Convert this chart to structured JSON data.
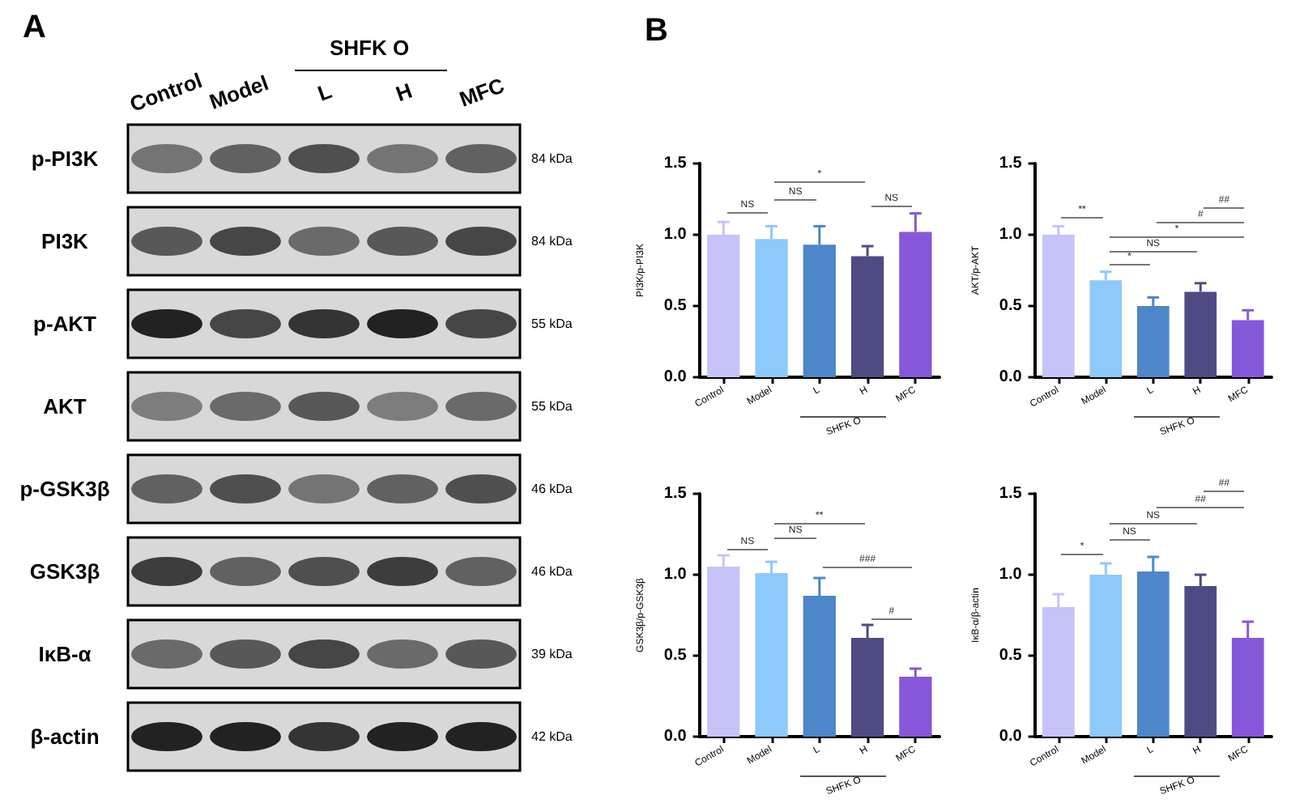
{
  "chart_data": [
    {
      "type": "other",
      "title": "A",
      "annotations": [
        "Control",
        "Model",
        "L",
        "H",
        "MFC",
        "SHFK O",
        "p-PI3K",
        "PI3K",
        "p-AKT",
        "AKT",
        "p-GSK3β",
        "GSK3β",
        "IκB-α",
        "β-actin",
        "84 kDa",
        "84 kDa",
        "55 kDa",
        "55 kDa",
        "46 kDa",
        "46 kDa",
        "39 kDa",
        "42 kDa"
      ]
    },
    {
      "type": "bar",
      "title": "B",
      "ylabel": "PI3K/p-PI3K",
      "categories": [
        "Control",
        "Model",
        "L",
        "H",
        "MFC"
      ],
      "values": [
        1.0,
        0.97,
        0.93,
        0.85,
        1.02
      ],
      "errors": [
        [
          1.0,
          1.09
        ],
        [
          0.97,
          1.06
        ],
        [
          0.93,
          1.06
        ],
        [
          0.85,
          0.92
        ],
        [
          1.02,
          1.15
        ]
      ],
      "colors": [
        "#c5c3fa",
        "#8ec9fb",
        "#4d87c9",
        "#4e4b84",
        "#8757da"
      ],
      "ylim": [
        0,
        1.5
      ],
      "yticks": [
        {
          "value": 0,
          "label": "0.0"
        },
        {
          "value": 0.5,
          "label": "0.5"
        },
        {
          "value": 1,
          "label": "1.0"
        },
        {
          "value": 1.5,
          "label": "1.5"
        }
      ],
      "annotations": [
        "NS",
        "NS",
        "*",
        "NS",
        "SHFK O"
      ]
    },
    {
      "type": "bar",
      "ylabel": "AKT/p-AKT",
      "categories": [
        "Control",
        "Model",
        "L",
        "H",
        "MFC"
      ],
      "values": [
        1.0,
        0.68,
        0.5,
        0.6,
        0.4
      ],
      "errors": [
        [
          1.0,
          1.06
        ],
        [
          0.68,
          0.74
        ],
        [
          0.5,
          0.56
        ],
        [
          0.6,
          0.66
        ],
        [
          0.4,
          0.47
        ]
      ],
      "colors": [
        "#c5c3fa",
        "#8ec9fb",
        "#4d87c9",
        "#4e4b84",
        "#8757da"
      ],
      "ylim": [
        0,
        1.5
      ],
      "yticks": [
        {
          "value": 0,
          "label": "0.0"
        },
        {
          "value": 0.5,
          "label": "0.5"
        },
        {
          "value": 1,
          "label": "1.0"
        },
        {
          "value": 1.5,
          "label": "1.5"
        }
      ],
      "annotations": [
        "**",
        "*",
        "NS",
        "*",
        "#",
        "##",
        "SHFK O"
      ]
    },
    {
      "type": "bar",
      "ylabel": "GSK3β/p-GSK3β",
      "categories": [
        "Control",
        "Model",
        "L",
        "H",
        "MFC"
      ],
      "values": [
        1.05,
        1.01,
        0.87,
        0.61,
        0.37
      ],
      "errors": [
        [
          1.05,
          1.12
        ],
        [
          1.01,
          1.08
        ],
        [
          0.87,
          0.98
        ],
        [
          0.61,
          0.69
        ],
        [
          0.37,
          0.42
        ]
      ],
      "colors": [
        "#c5c3fa",
        "#8ec9fb",
        "#4d87c9",
        "#4e4b84",
        "#8757da"
      ],
      "ylim": [
        0,
        1.5
      ],
      "yticks": [
        {
          "value": 0,
          "label": "0.0"
        },
        {
          "value": 0.5,
          "label": "0.5"
        },
        {
          "value": 1,
          "label": "1.0"
        },
        {
          "value": 1.5,
          "label": "1.5"
        }
      ],
      "annotations": [
        "NS",
        "NS",
        "**",
        "###",
        "#",
        "SHFK O"
      ]
    },
    {
      "type": "bar",
      "ylabel": "IκB-α/β-actin",
      "categories": [
        "Control",
        "Model",
        "L",
        "H",
        "MFC"
      ],
      "values": [
        0.8,
        1.0,
        1.02,
        0.93,
        0.61
      ],
      "errors": [
        [
          0.8,
          0.88
        ],
        [
          1.0,
          1.07
        ],
        [
          1.02,
          1.11
        ],
        [
          0.93,
          1.0
        ],
        [
          0.61,
          0.71
        ]
      ],
      "colors": [
        "#c5c3fa",
        "#8ec9fb",
        "#4d87c9",
        "#4e4b84",
        "#8757da"
      ],
      "ylim": [
        0,
        1.5
      ],
      "yticks": [
        {
          "value": 0,
          "label": "0.0"
        },
        {
          "value": 0.5,
          "label": "0.5"
        },
        {
          "value": 1,
          "label": "1.0"
        },
        {
          "value": 1.5,
          "label": "1.5"
        }
      ],
      "annotations": [
        "*",
        "NS",
        "NS",
        "##",
        "##",
        "SHFK O"
      ]
    }
  ]
}
